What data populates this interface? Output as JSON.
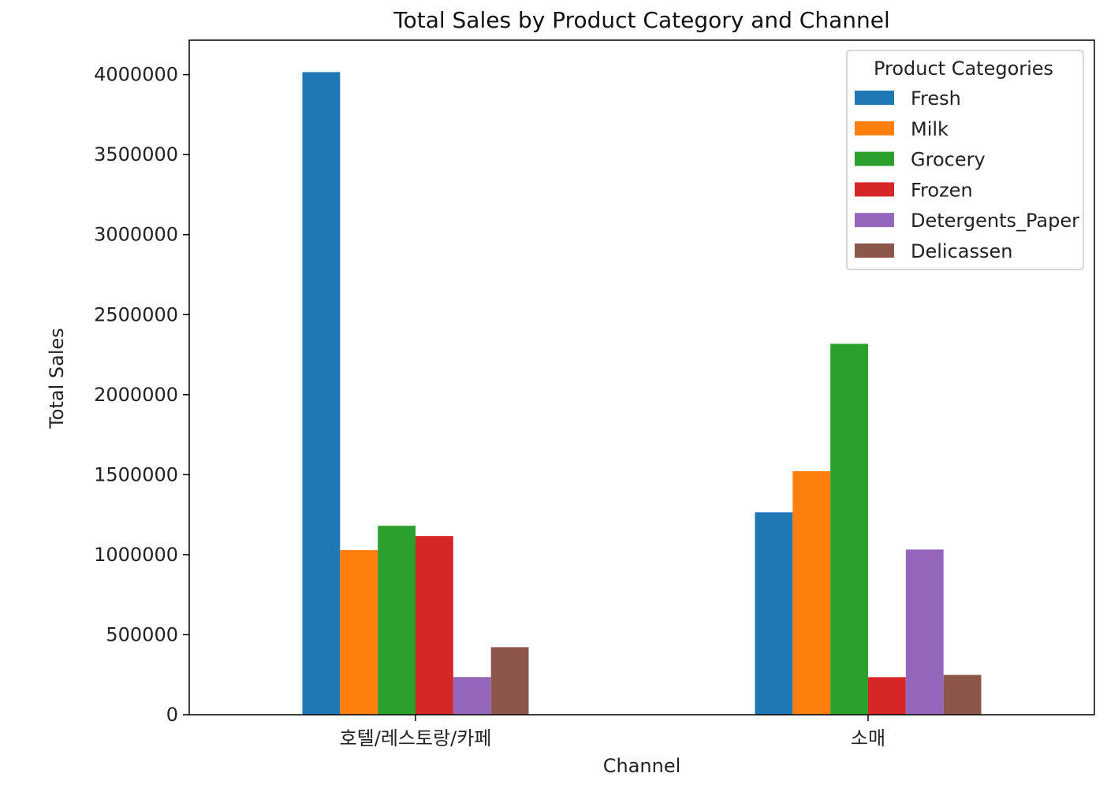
{
  "chart_data": {
    "type": "bar",
    "title": "Total Sales by Product Category and Channel",
    "xlabel": "Channel",
    "ylabel": "Total Sales",
    "categories": [
      "호텔/레스토랑/카페",
      "소매"
    ],
    "series": [
      {
        "name": "Fresh",
        "color": "#1f77b4",
        "values": [
          4015717,
          1264414
        ]
      },
      {
        "name": "Milk",
        "color": "#ff7f0e",
        "values": [
          1028614,
          1521743
        ]
      },
      {
        "name": "Grocery",
        "color": "#2ca02c",
        "values": [
          1180717,
          2317845
        ]
      },
      {
        "name": "Frozen",
        "color": "#d62728",
        "values": [
          1116979,
          234671
        ]
      },
      {
        "name": "Detergents_Paper",
        "color": "#9467bd",
        "values": [
          235587,
          1032270
        ]
      },
      {
        "name": "Delicassen",
        "color": "#8c564b",
        "values": [
          421955,
          248988
        ]
      }
    ],
    "ylim": [
      0,
      4215000
    ],
    "yticks": [
      0,
      500000,
      1000000,
      1500000,
      2000000,
      2500000,
      3000000,
      3500000,
      4000000
    ],
    "legend": {
      "title": "Product Categories",
      "placement": "top-right"
    },
    "grid": false
  }
}
